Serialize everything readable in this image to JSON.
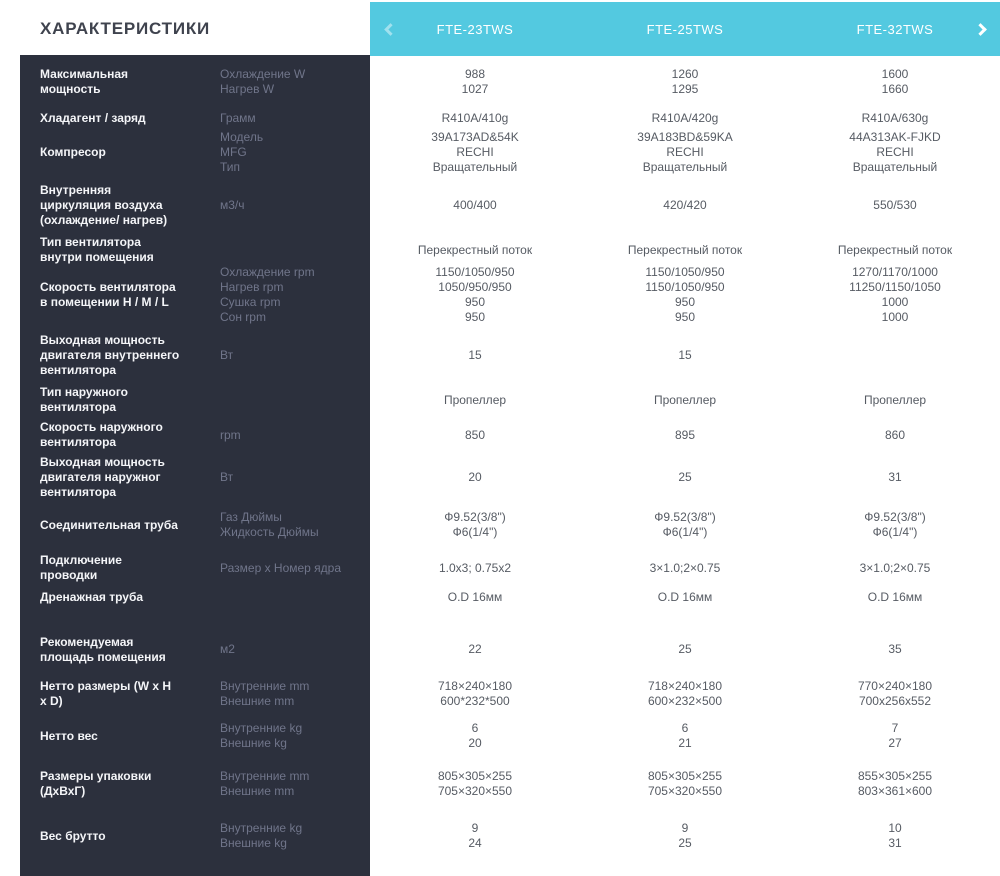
{
  "page": {
    "title": "ХАРАКТЕРИСТИКИ"
  },
  "colors": {
    "panel": "#2c303d",
    "accent": "#53c9e0",
    "label_text": "#f4f5f8",
    "unit_text": "#70758a",
    "value_text": "#565b63",
    "title_text": "#3f434e"
  },
  "header": {
    "models": [
      "FTE-23TWS",
      "FTE-25TWS",
      "FTE-32TWS"
    ],
    "icons": {
      "prev": "chevron-left",
      "next": "chevron-right"
    }
  },
  "rows": [
    {
      "label": "Максимальная мощность",
      "units": [
        "Охлаждение W",
        "Нагрев W"
      ],
      "values": [
        [
          "988",
          "1027"
        ],
        [
          "1260",
          "1295"
        ],
        [
          "1600",
          "1660"
        ]
      ]
    },
    {
      "label": "Хладагент / заряд",
      "units": [
        "Грамм"
      ],
      "values": [
        [
          "R410A/410g"
        ],
        [
          "R410A/420g"
        ],
        [
          "R410A/630g"
        ]
      ]
    },
    {
      "label": "Компресор",
      "units": [
        "Модель",
        "MFG",
        "Тип"
      ],
      "values": [
        [
          "39A173AD&54K",
          "RECHI",
          "Вращательный"
        ],
        [
          "39A183BD&59KA",
          "RECHI",
          "Вращательный"
        ],
        [
          "44A313AK-FJKD",
          "RECHI",
          "Вращательный"
        ]
      ]
    },
    {
      "label": "Внутренняя циркуляция воздуха (охлаждение/ нагрев)",
      "units": [
        "м3/ч"
      ],
      "values": [
        [
          "400/400"
        ],
        [
          "420/420"
        ],
        [
          "550/530"
        ]
      ]
    },
    {
      "label": "Тип вентилятора внутри помещения",
      "units": [],
      "values": [
        [
          "Перекрестный поток"
        ],
        [
          "Перекрестный поток"
        ],
        [
          "Перекрестный поток"
        ]
      ]
    },
    {
      "label": "Скорость вентилятора в помещении H / M / L",
      "units": [
        "Охлаждение rpm",
        "Нагрев rpm",
        "Сушка rpm",
        "Сон rpm"
      ],
      "values": [
        [
          "1150/1050/950",
          "1050/950/950",
          "950",
          "950"
        ],
        [
          "1150/1050/950",
          "1150/1050/950",
          "950",
          "950"
        ],
        [
          "1270/1170/1000",
          "11250/1150/1050",
          "1000",
          "1000"
        ]
      ]
    },
    {
      "label": "Выходная мощность двигателя внутреннего вентилятора",
      "units": [
        "Вт"
      ],
      "values": [
        [
          "15"
        ],
        [
          "15"
        ],
        [
          ""
        ]
      ]
    },
    {
      "label": "Тип наружного вентилятора",
      "units": [],
      "values": [
        [
          "Пропеллер"
        ],
        [
          "Пропеллер"
        ],
        [
          "Пропеллер"
        ]
      ]
    },
    {
      "label": "Скорость наружного вентилятора",
      "units": [
        "rpm"
      ],
      "values": [
        [
          "850"
        ],
        [
          "895"
        ],
        [
          "860"
        ]
      ]
    },
    {
      "label": "Выходная мощность двигателя наружног вентилятора",
      "units": [
        "Вт"
      ],
      "values": [
        [
          "20"
        ],
        [
          "25"
        ],
        [
          "31"
        ]
      ]
    },
    {
      "label": "Соединительная труба",
      "units": [
        "Газ Дюймы",
        "Жидкость Дюймы"
      ],
      "values": [
        [
          "Ф9.52(3/8\")",
          "Ф6(1/4\")"
        ],
        [
          "Ф9.52(3/8\")",
          "Ф6(1/4\")"
        ],
        [
          "Ф9.52(3/8\")",
          "Ф6(1/4\")"
        ]
      ]
    },
    {
      "label": "Подключение проводки",
      "units": [
        "Размер x Номер ядра"
      ],
      "values": [
        [
          "1.0x3; 0.75x2"
        ],
        [
          "3×1.0;2×0.75"
        ],
        [
          "3×1.0;2×0.75"
        ]
      ]
    },
    {
      "label": "Дренажная труба",
      "units": [],
      "values": [
        [
          "O.D 16мм"
        ],
        [
          "O.D 16мм"
        ],
        [
          "O.D 16мм"
        ]
      ]
    },
    {
      "label": "Рекомендуемая площадь помещения",
      "units": [
        "м2"
      ],
      "values": [
        [
          "22"
        ],
        [
          "25"
        ],
        [
          "35"
        ]
      ]
    },
    {
      "label": "Нетто размеры (W x H x D)",
      "units": [
        "Внутренние mm",
        "Внешние mm"
      ],
      "values": [
        [
          "718×240×180",
          "600*232*500"
        ],
        [
          "718×240×180",
          "600×232×500"
        ],
        [
          "770×240×180",
          "700x256x552"
        ]
      ]
    },
    {
      "label": "Нетто вес",
      "units": [
        "Внутренние kg",
        "Внешние kg"
      ],
      "values": [
        [
          "6",
          "20"
        ],
        [
          "6",
          "21"
        ],
        [
          "7",
          "27"
        ]
      ]
    },
    {
      "label": "Размеры упаковки (ДхВхГ)",
      "units": [
        "Внутренние mm",
        "Внешние mm"
      ],
      "values": [
        [
          "805×305×255",
          "705×320×550"
        ],
        [
          "805×305×255",
          "705×320×550"
        ],
        [
          "855×305×255",
          "803×361×600"
        ]
      ]
    },
    {
      "label": "Вес брутто",
      "units": [
        "Внутренние kg",
        "Внешние kg"
      ],
      "values": [
        [
          "9",
          "24"
        ],
        [
          "9",
          "25"
        ],
        [
          "10",
          "31"
        ]
      ]
    }
  ]
}
